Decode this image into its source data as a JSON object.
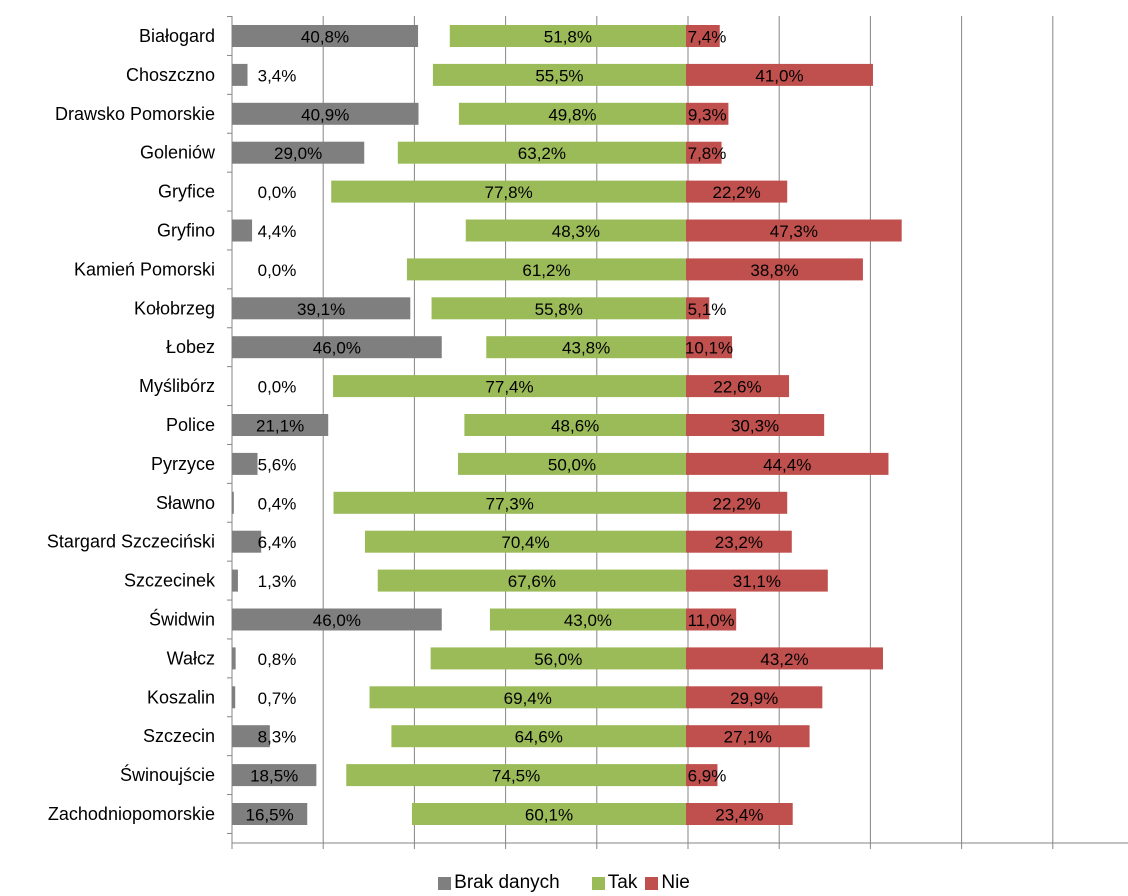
{
  "chart_data": {
    "type": "bar",
    "orientation": "horizontal",
    "stacking": "diverging",
    "categories": [
      "Białogard",
      "Choszczno",
      "Drawsko Pomorskie",
      "Goleniów",
      "Gryfice",
      "Gryfino",
      "Kamień Pomorski",
      "Kołobrzeg",
      "Łobez",
      "Myślibórz",
      "Police",
      "Pyrzyce",
      "Sławno",
      "Stargard Szczeciński",
      "Szczecinek",
      "Świdwin",
      "Wałcz",
      "Koszalin",
      "Szczecin",
      "Świnoujście",
      "Zachodniopomorskie"
    ],
    "series": [
      {
        "name": "Brak danych",
        "color": "#7f7f7f",
        "values": [
          40.8,
          3.4,
          40.9,
          29.0,
          0.0,
          4.4,
          0.0,
          39.1,
          46.0,
          0.0,
          21.1,
          5.6,
          0.4,
          6.4,
          1.3,
          46.0,
          0.8,
          0.7,
          8.3,
          18.5,
          16.5
        ],
        "labels": [
          "40,8%",
          "3,4%",
          "40,9%",
          "29,0%",
          "0,0%",
          "4,4%",
          "0,0%",
          "39,1%",
          "46,0%",
          "0,0%",
          "21,1%",
          "5,6%",
          "0,4%",
          "6,4%",
          "1,3%",
          "46,0%",
          "0,8%",
          "0,7%",
          "8,3%",
          "18,5%",
          "16,5%"
        ]
      },
      {
        "name": "Tak",
        "color": "#9bbb59",
        "values": [
          51.8,
          55.5,
          49.8,
          63.2,
          77.8,
          48.3,
          61.2,
          55.8,
          43.8,
          77.4,
          48.6,
          50.0,
          77.3,
          70.4,
          67.6,
          43.0,
          56.0,
          69.4,
          64.6,
          74.5,
          60.1
        ],
        "labels": [
          "51,8%",
          "55,5%",
          "49,8%",
          "63,2%",
          "77,8%",
          "48,3%",
          "61,2%",
          "55,8%",
          "43,8%",
          "77,4%",
          "48,6%",
          "50,0%",
          "77,3%",
          "70,4%",
          "67,6%",
          "43,0%",
          "56,0%",
          "69,4%",
          "64,6%",
          "74,5%",
          "60,1%"
        ]
      },
      {
        "name": "Nie",
        "color": "#c0504d",
        "values": [
          7.4,
          41.0,
          9.3,
          7.8,
          22.2,
          47.3,
          38.8,
          5.1,
          10.1,
          22.6,
          30.3,
          44.4,
          22.2,
          23.2,
          31.1,
          11.0,
          43.2,
          29.9,
          27.1,
          6.9,
          23.4
        ],
        "labels": [
          "7,4%",
          "41,0%",
          "9,3%",
          "7,8%",
          "22,2%",
          "47,3%",
          "38,8%",
          "5,1%",
          "10,1%",
          "22,6%",
          "30,3%",
          "44,4%",
          "22,2%",
          "23,2%",
          "31,1%",
          "11,0%",
          "43,2%",
          "29,9%",
          "27,1%",
          "6,9%",
          "23,4%"
        ]
      }
    ],
    "grid": true,
    "legend": "bottom"
  }
}
